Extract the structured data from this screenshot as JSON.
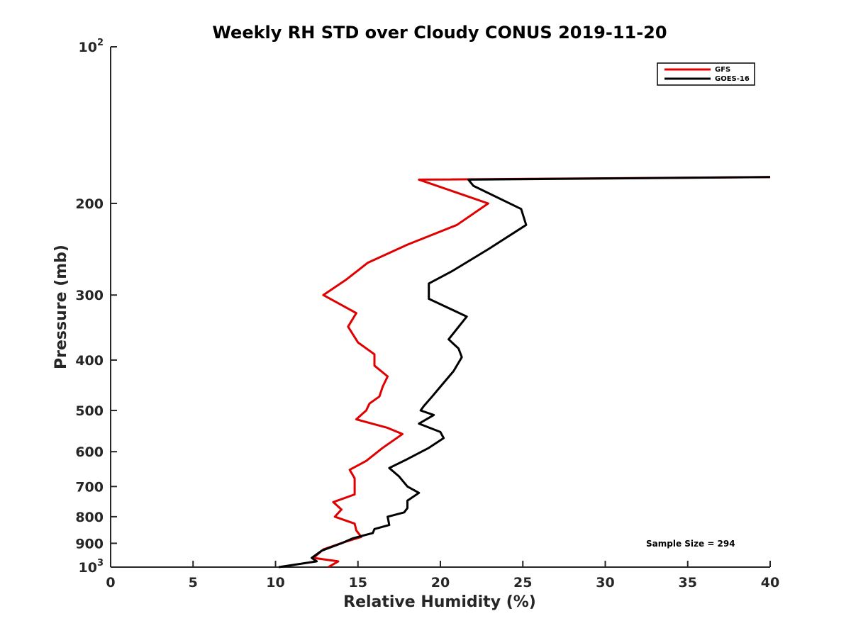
{
  "chart_data": {
    "type": "line",
    "title": "Weekly RH STD over Cloudy CONUS 2019-11-20",
    "xlabel": "Relative Humidity (%)",
    "ylabel": "Pressure (mb)",
    "xlim": [
      0,
      40
    ],
    "ylim": [
      100,
      1000
    ],
    "y_scale": "log",
    "y_reversed": true,
    "grid": false,
    "legend_position": "top-right",
    "x_ticks": [
      0,
      5,
      10,
      15,
      20,
      25,
      30,
      35,
      40
    ],
    "x_tick_labels": [
      "0",
      "5",
      "10",
      "15",
      "20",
      "25",
      "30",
      "35",
      "40"
    ],
    "y_ticks": [
      100,
      200,
      300,
      400,
      500,
      600,
      700,
      800,
      900,
      1000
    ],
    "y_tick_labels": [
      {
        "base": "10",
        "sup": "2"
      },
      {
        "base": "200"
      },
      {
        "base": "300"
      },
      {
        "base": "400"
      },
      {
        "base": "500"
      },
      {
        "base": "600"
      },
      {
        "base": "700"
      },
      {
        "base": "800"
      },
      {
        "base": "900"
      },
      {
        "base": "10",
        "sup": "3"
      }
    ],
    "annotation": "Sample Size = 294",
    "series": [
      {
        "name": "GFS",
        "color": "#e00000",
        "points": [
          [
            13.2,
            1000
          ],
          [
            13.8,
            975
          ],
          [
            12.3,
            960
          ],
          [
            12.9,
            925
          ],
          [
            14.2,
            895
          ],
          [
            15.2,
            875
          ],
          [
            14.9,
            850
          ],
          [
            14.8,
            825
          ],
          [
            13.6,
            800
          ],
          [
            14.0,
            775
          ],
          [
            13.5,
            750
          ],
          [
            14.8,
            725
          ],
          [
            14.8,
            700
          ],
          [
            14.8,
            675
          ],
          [
            14.5,
            650
          ],
          [
            15.5,
            625
          ],
          [
            16.5,
            590
          ],
          [
            17.7,
            555
          ],
          [
            16.8,
            540
          ],
          [
            14.9,
            520
          ],
          [
            15.5,
            500
          ],
          [
            15.7,
            485
          ],
          [
            16.3,
            470
          ],
          [
            16.5,
            450
          ],
          [
            16.8,
            430
          ],
          [
            16.0,
            410
          ],
          [
            16.0,
            390
          ],
          [
            15.0,
            370
          ],
          [
            14.4,
            345
          ],
          [
            14.9,
            325
          ],
          [
            12.9,
            300
          ],
          [
            14.3,
            280
          ],
          [
            15.6,
            260
          ],
          [
            18.0,
            240
          ],
          [
            21.0,
            220
          ],
          [
            22.9,
            200
          ],
          [
            18.7,
            180
          ],
          [
            40.0,
            178
          ]
        ]
      },
      {
        "name": "GOES-16",
        "color": "#000000",
        "points": [
          [
            10.2,
            1000
          ],
          [
            12.5,
            975
          ],
          [
            12.2,
            960
          ],
          [
            12.8,
            930
          ],
          [
            14.0,
            900
          ],
          [
            14.7,
            880
          ],
          [
            15.9,
            860
          ],
          [
            16.0,
            845
          ],
          [
            16.9,
            830
          ],
          [
            16.8,
            800
          ],
          [
            17.8,
            785
          ],
          [
            18.0,
            770
          ],
          [
            18.0,
            745
          ],
          [
            18.7,
            720
          ],
          [
            18.0,
            700
          ],
          [
            17.5,
            670
          ],
          [
            16.9,
            645
          ],
          [
            18.0,
            620
          ],
          [
            19.3,
            590
          ],
          [
            20.2,
            565
          ],
          [
            20.0,
            550
          ],
          [
            18.7,
            530
          ],
          [
            19.6,
            510
          ],
          [
            18.8,
            500
          ],
          [
            19.0,
            490
          ],
          [
            19.5,
            470
          ],
          [
            20.0,
            450
          ],
          [
            20.8,
            420
          ],
          [
            21.3,
            395
          ],
          [
            21.1,
            380
          ],
          [
            20.5,
            365
          ],
          [
            21.6,
            330
          ],
          [
            19.3,
            305
          ],
          [
            19.3,
            285
          ],
          [
            20.7,
            270
          ],
          [
            22.9,
            245
          ],
          [
            25.2,
            220
          ],
          [
            24.9,
            205
          ],
          [
            22.0,
            185
          ],
          [
            21.7,
            180
          ],
          [
            40.0,
            178
          ]
        ]
      }
    ]
  }
}
